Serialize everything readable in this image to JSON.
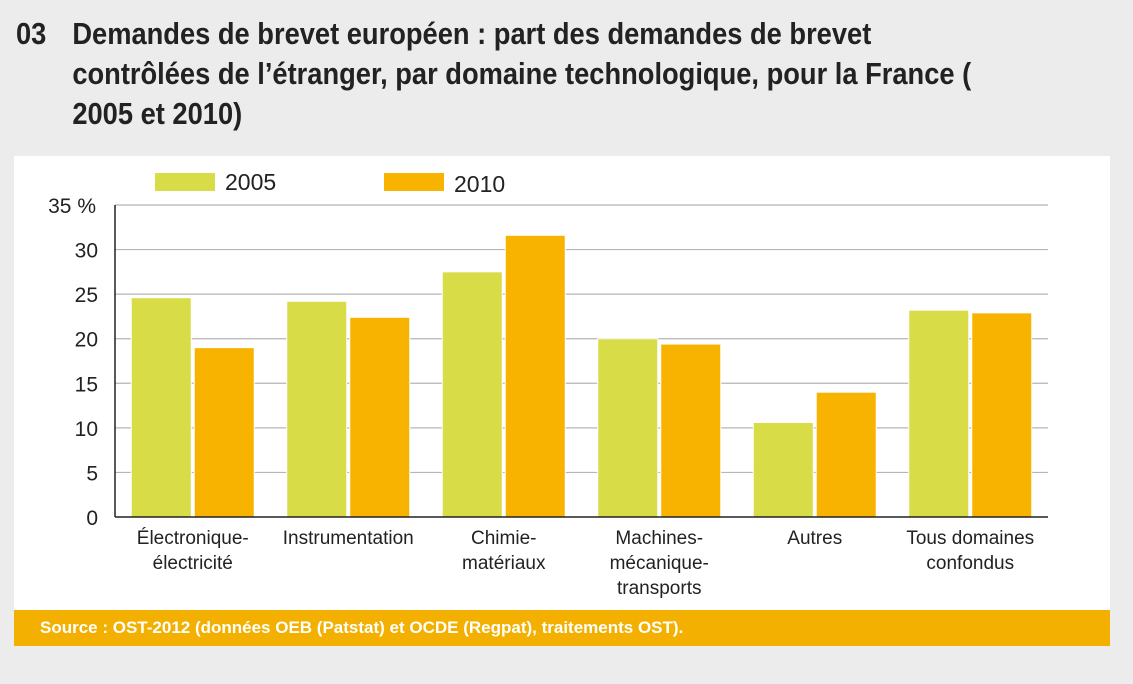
{
  "title": {
    "number": "03",
    "text": "Demandes de brevet européen : part des demandes de brevet contrôlées de l’étranger, par domaine technologique, pour la France ( 2005 et 2010)"
  },
  "source": "Source : OST-2012 (données OEB (Patstat) et OCDE (Regpat), traitements OST).",
  "chart_data": {
    "type": "bar",
    "categories": [
      [
        "Électronique-",
        "électricité"
      ],
      [
        "Instrumentation"
      ],
      [
        "Chimie-",
        "matériaux"
      ],
      [
        "Machines-",
        "mécanique-",
        "transports"
      ],
      [
        "Autres"
      ],
      [
        "Tous domaines",
        "confondus"
      ]
    ],
    "series": [
      {
        "name": "2005",
        "color": "#d7dc47",
        "values": [
          24.6,
          24.2,
          27.5,
          20.0,
          10.6,
          23.2
        ]
      },
      {
        "name": "2010",
        "color": "#f8b200",
        "values": [
          19.0,
          22.4,
          31.6,
          19.4,
          14.0,
          22.9
        ]
      }
    ],
    "yticks": [
      "0",
      "5",
      "10",
      "15",
      "20",
      "25",
      "30",
      "35 %"
    ],
    "ylim": [
      0,
      35
    ],
    "grid": true,
    "legend": "top"
  }
}
